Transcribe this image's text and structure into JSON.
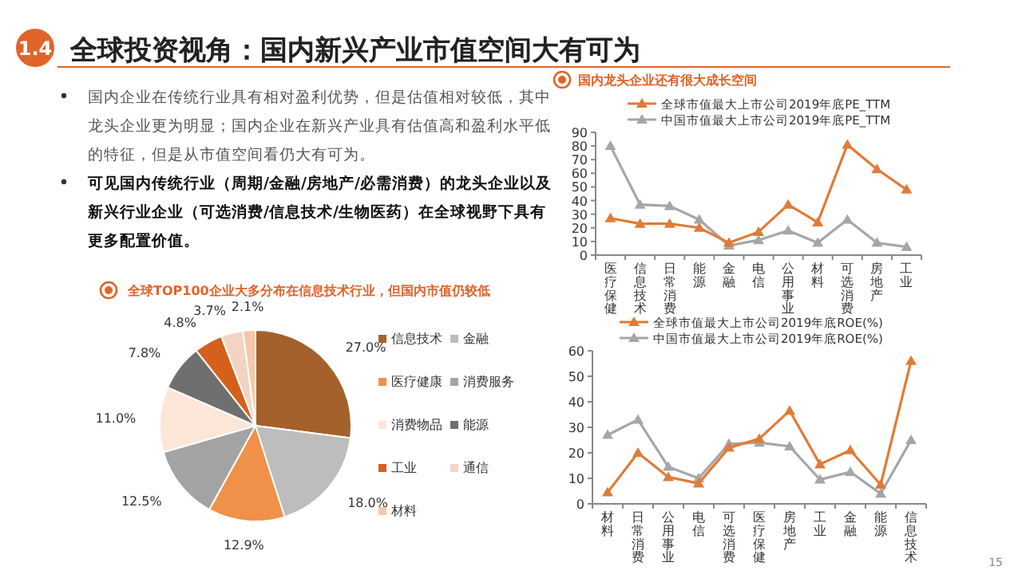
{
  "chart_data": [
    {
      "type": "other",
      "title": "全球投资视角：国内新兴产业市值空间大有可为",
      "annotations": [
        "1.4",
        "国内企业在传统行业具有相对盈利优势，但是估值相对较低，其中龙头企业更为明显；国内企业在新兴产业具有估值高和盈利水平低的特征，但是从市值空间看仍大有可为。",
        "可见国内传统行业（周期/金融/房地产/必需消费）的龙头企业以及新兴行业企业（可选消费/信息技术/生物医药）在全球视野下具有更多配置价值。",
        "15"
      ]
    },
    {
      "type": "line",
      "title": "国内龙头企业还有很大成长空间",
      "categories": [
        "医疗保健",
        "信息技术",
        "日常消费",
        "能源",
        "金融",
        "电信",
        "公用事业",
        "材料",
        "可选消费",
        "房地产",
        "工业"
      ],
      "series": [
        {
          "name": "全球市值最大上市公司2019年底PE_TTM",
          "color": "#e07b39",
          "values": [
            27,
            23,
            23,
            20,
            9,
            17,
            37,
            24,
            81,
            63,
            48
          ]
        },
        {
          "name": "中国市值最大上市公司2019年底PE_TTM",
          "color": "#a6a6a6",
          "values": [
            80,
            37,
            36,
            26,
            7,
            11,
            18,
            9,
            26,
            9,
            6
          ]
        }
      ],
      "ylim": [
        0,
        90
      ],
      "yticks": [
        0,
        10,
        20,
        30,
        40,
        50,
        60,
        70,
        80,
        90
      ],
      "legend": "top",
      "marker": "triangle",
      "grid": false
    },
    {
      "type": "pie",
      "title": "全球TOP100企业大多分布在信息技术行业，但国内市值仍较低",
      "categories": [
        "信息技术",
        "金融",
        "医疗健康",
        "消费服务",
        "消费物品",
        "能源",
        "工业",
        "通信",
        "材料"
      ],
      "values": [
        27.0,
        18.0,
        12.9,
        12.5,
        11.0,
        7.8,
        4.8,
        3.7,
        2.1
      ],
      "value_labels": [
        "27.0%",
        "18.0%",
        "12.9%",
        "12.5%",
        "11.0%",
        "7.8%",
        "4.8%",
        "3.7%",
        "2.1%"
      ],
      "colors": [
        "#a5612c",
        "#bdbdbd",
        "#f0914a",
        "#a3a3a3",
        "#fbe6d8",
        "#6f6f6f",
        "#d4601c",
        "#f3d4c4",
        "#f5c8a8"
      ],
      "legend": "right"
    },
    {
      "type": "line",
      "categories": [
        "材料",
        "日常消费",
        "公用事业",
        "电信",
        "可选消费",
        "医疗保健",
        "房地产",
        "工业",
        "金融",
        "能源",
        "信息技术"
      ],
      "series": [
        {
          "name": "全球市值最大上市公司2019年底ROE(%)",
          "color": "#e07b39",
          "values": [
            4.5,
            20,
            10.5,
            8,
            22,
            25.5,
            36.5,
            15.5,
            21,
            7.5,
            56
          ]
        },
        {
          "name": "中国市值最大上市公司2019年底ROE(%)",
          "color": "#a6a6a6",
          "values": [
            27,
            33,
            14.5,
            10,
            23.5,
            24,
            22.5,
            9.5,
            12.5,
            4,
            25
          ]
        }
      ],
      "ylim": [
        0,
        60
      ],
      "yticks": [
        0,
        10,
        20,
        30,
        40,
        50,
        60
      ],
      "legend": "top",
      "marker": "triangle",
      "grid": false
    }
  ]
}
